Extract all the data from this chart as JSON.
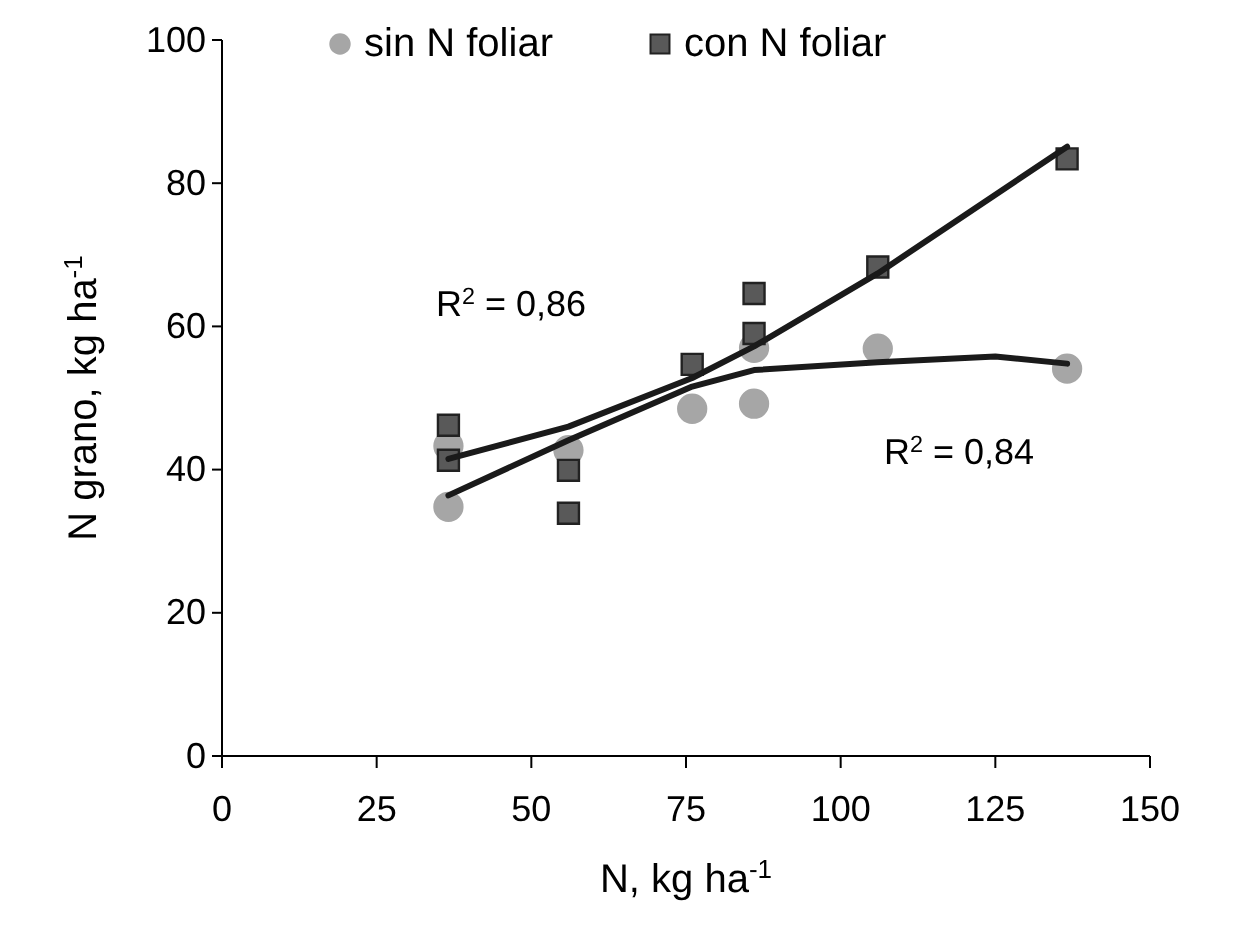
{
  "chart_data": {
    "type": "scatter",
    "xlabel": "N, kg ha$^{-1}$",
    "ylabel": "N grano, kg ha$^{-1}$",
    "xlim": [
      0,
      150
    ],
    "ylim": [
      0,
      100
    ],
    "xticks": [
      0,
      25,
      50,
      75,
      100,
      125,
      150
    ],
    "yticks": [
      0,
      20,
      40,
      60,
      80,
      100
    ],
    "grid": false,
    "legend": "top",
    "series": [
      {
        "name": "sin N foliar",
        "color": "#a6a6a6",
        "marker": "circle",
        "x": [
          36.6,
          36.6,
          56,
          76,
          86,
          86,
          106,
          136.6
        ],
        "values": [
          34.8,
          43.3,
          42.7,
          48.5,
          49.2,
          57,
          56.9,
          54.1
        ]
      },
      {
        "name": "con N foliar",
        "color": "#595959",
        "marker": "square",
        "x": [
          36.6,
          36.6,
          56,
          56,
          76,
          86,
          86,
          106,
          136.6
        ],
        "values": [
          46.2,
          41.3,
          39.9,
          33.9,
          54.7,
          64.6,
          59,
          68.3,
          83.4
        ]
      },
      {
        "type": "line",
        "color": "#1a1a1a",
        "marker": "none",
        "x": [
          36.6,
          56,
          76,
          86,
          106,
          125,
          136.6
        ],
        "values": [
          36.4,
          44.1,
          51.6,
          53.9,
          55,
          55.8,
          54.8
        ]
      },
      {
        "type": "line",
        "color": "#1a1a1a",
        "marker": "none",
        "x": [
          36.6,
          56,
          76,
          86,
          106,
          136.6
        ],
        "values": [
          41.5,
          46,
          52.8,
          57.2,
          67.4,
          85.1
        ]
      }
    ],
    "annotations": [
      "R$^{2}$ = 0,86",
      "R$^{2}$ = 0,84"
    ]
  }
}
